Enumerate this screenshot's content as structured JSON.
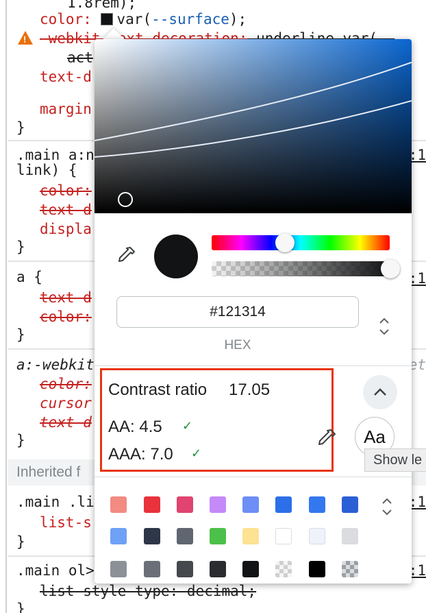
{
  "styles": {
    "top_value": "1.8rem);",
    "color_prop": "color:",
    "color_value_var": "var(",
    "color_value_varname": "--surface",
    "color_value_tail": ");",
    "webkit_prop": "-webkit-text-decoration:",
    "webkit_value": " underline var(--",
    "act": "act",
    "text_d": "text-d",
    "margin": "margin",
    "close_brace": "}",
    "rule2_sel1": ".main a:n",
    "rule2_sel2": "link) {",
    "rule2_color": "color:",
    "rule2_textd": "text d",
    "rule2_displ": "displa",
    "rule3_sel": "a {",
    "rule3_textd": "text-d",
    "rule3_color": "color:",
    "rule4_sel": "a:-webkit",
    "rule4_color": "color:",
    "rule4_cursor": "cursor",
    "rule4_textd": "text d",
    "inherited_label": "Inherited f",
    "rule5_sel": ".main .li",
    "rule5_list": "list-s",
    "rule6_sel": ".main ol>",
    "rule6_decl": "list style type: decimal;",
    "src_1": ":1",
    "src_2": ":1",
    "src_3": ":1",
    "src_4": "et",
    "src_5": ":1",
    "src_6": ":1"
  },
  "picker": {
    "hex_value": "#121314",
    "format_label": "HEX",
    "current_color": "#121314",
    "contrast": {
      "title": "Contrast ratio",
      "ratio": "17.05",
      "aa": "AA: 4.5",
      "aaa": "AAA: 7.0",
      "check": "✓",
      "preview_text": "Aa",
      "tooltip": "Show le"
    },
    "palette": [
      [
        "#f28b82",
        "#e8323c",
        "#e0446f",
        "#c58af9",
        "#6d8ef6",
        "#2c6fe8",
        "#3478f0",
        "#2a5fd6"
      ],
      [
        "#6fa1f6",
        "#2d3748",
        "#5f6670",
        "#4cc04a",
        "#fde293",
        "#ffffff",
        "#eef3fa",
        "#dadce0"
      ],
      [
        "#8c9198",
        "#6b7078",
        "#45484d",
        "#2a2c2f",
        "#121314",
        "checker",
        "#000000",
        "checker-dark"
      ]
    ]
  },
  "icons": {
    "warning": "warning-icon",
    "eyedropper": "eyedropper-icon",
    "chevron_up": "chevron-up-icon",
    "updown": "updown-chevron-icon"
  }
}
